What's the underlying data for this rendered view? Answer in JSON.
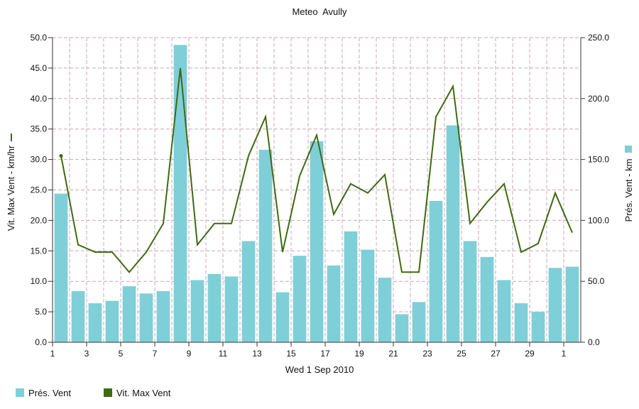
{
  "chart_data": {
    "type": "bar+line",
    "title": "Meteo  Avully",
    "xlabel": "Wed 1 Sep 2010",
    "x_tick_labels": [
      "1",
      "3",
      "5",
      "7",
      "9",
      "11",
      "13",
      "15",
      "17",
      "19",
      "21",
      "23",
      "25",
      "27",
      "29",
      "1"
    ],
    "grid": true,
    "legend_position": "bottom-left",
    "left_axis": {
      "label": "Vit. Max Vent - km/hr",
      "ylim": [
        0,
        50
      ],
      "tick_labels": [
        "0.0",
        "5.0",
        "10.0",
        "15.0",
        "20.0",
        "25.0",
        "30.0",
        "35.0",
        "40.0",
        "45.0",
        "50.0"
      ]
    },
    "right_axis": {
      "label": "Prés. Vent - km",
      "ylim": [
        0,
        250
      ],
      "tick_labels": [
        "0.0",
        "50.0",
        "100.0",
        "150.0",
        "200.0",
        "250.0"
      ]
    },
    "series": [
      {
        "name": "Prés. Vent",
        "type": "bar",
        "axis": "right",
        "color": "#7fcfd8",
        "values": [
          122,
          42,
          32,
          34,
          46,
          40,
          42,
          244,
          51,
          56,
          54,
          83,
          158,
          41,
          71,
          165,
          63,
          91,
          76,
          53,
          23,
          33,
          116,
          178,
          83,
          70,
          51,
          32,
          25,
          61,
          62
        ]
      },
      {
        "name": "Vit. Max Vent",
        "type": "line",
        "axis": "left",
        "color": "#3f6a12",
        "values": [
          30.6,
          16.0,
          14.8,
          14.8,
          11.5,
          14.8,
          19.5,
          45.0,
          16.0,
          19.5,
          19.5,
          30.6,
          37.0,
          14.8,
          27.3,
          34.0,
          21.0,
          26.0,
          24.5,
          27.5,
          11.5,
          11.5,
          37.0,
          42.0,
          19.5,
          23.0,
          26.0,
          14.8,
          16.2,
          24.5,
          18.0
        ]
      }
    ]
  }
}
